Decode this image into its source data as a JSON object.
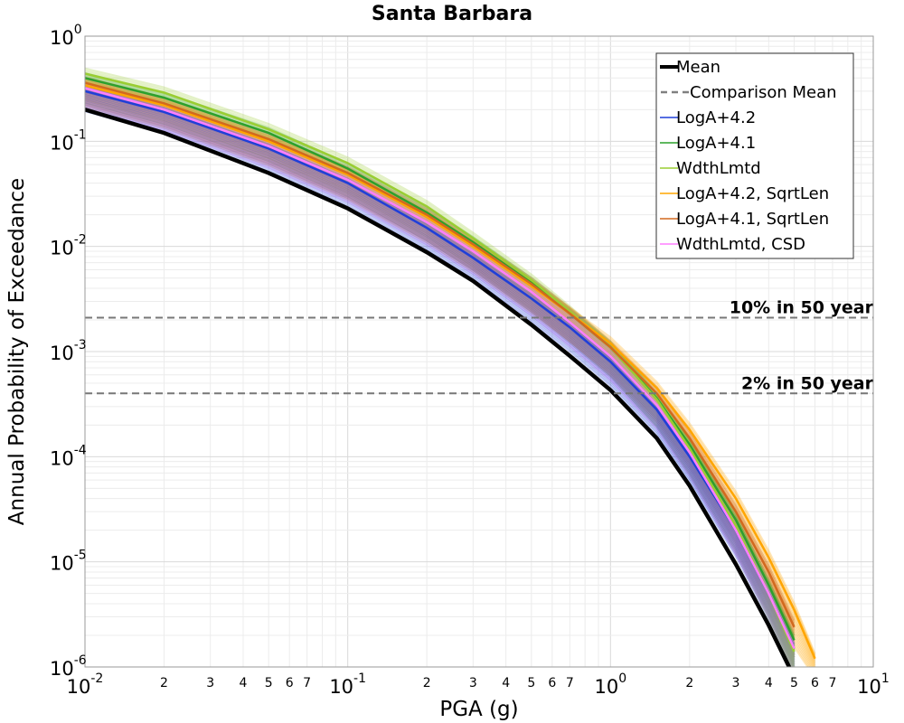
{
  "chart_data": {
    "type": "line",
    "title": "Santa Barbara",
    "xlabel": "PGA (g)",
    "ylabel": "Annual Probability of Exceedance",
    "xscale": "log",
    "yscale": "log",
    "xlim": [
      0.01,
      10
    ],
    "ylim": [
      1e-06,
      1
    ],
    "grid": true,
    "legend_position": "top-right",
    "x_ticks": [
      {
        "base": "10",
        "exp": "-2"
      },
      {
        "base": "10",
        "exp": "-1"
      },
      {
        "base": "10",
        "exp": "0"
      },
      {
        "base": "10",
        "exp": "1"
      }
    ],
    "x_minor_labels": [
      "2",
      "3",
      "4",
      "5",
      "6",
      "7"
    ],
    "y_ticks": [
      {
        "base": "10",
        "exp": "0"
      },
      {
        "base": "10",
        "exp": "-1"
      },
      {
        "base": "10",
        "exp": "-2"
      },
      {
        "base": "10",
        "exp": "-3"
      },
      {
        "base": "10",
        "exp": "-4"
      },
      {
        "base": "10",
        "exp": "-5"
      },
      {
        "base": "10",
        "exp": "-6"
      }
    ],
    "legend": [
      {
        "label": "Mean",
        "color": "#000000",
        "style": "solid-thick"
      },
      {
        "label": "Comparison Mean",
        "color": "#808080",
        "style": "dashed"
      },
      {
        "label": "LogA+4.2",
        "color": "#1f3fd8",
        "style": "solid"
      },
      {
        "label": "LogA+4.1",
        "color": "#2ca02c",
        "style": "solid"
      },
      {
        "label": "WdthLmtd",
        "color": "#9acd32",
        "style": "solid"
      },
      {
        "label": "LogA+4.2, SqrtLen",
        "color": "#ffa500",
        "style": "solid"
      },
      {
        "label": "LogA+4.1, SqrtLen",
        "color": "#d2691e",
        "style": "solid"
      },
      {
        "label": "WdthLmtd, CSD",
        "color": "#ff7fff",
        "style": "solid"
      }
    ],
    "reference_lines": [
      {
        "label": "10% in 50 year",
        "y": 0.0021
      },
      {
        "label": "2% in 50 year",
        "y": 0.0004
      }
    ],
    "series": [
      {
        "name": "Mean",
        "color": "#000000",
        "x": [
          0.01,
          0.02,
          0.05,
          0.1,
          0.2,
          0.3,
          0.5,
          0.7,
          1.0,
          1.5,
          2.0,
          3.0,
          4.0,
          5.0
        ],
        "y": [
          0.2,
          0.12,
          0.05,
          0.023,
          0.0088,
          0.0047,
          0.0018,
          0.00091,
          0.00043,
          0.00015,
          5.3e-05,
          9.5e-06,
          2.5e-06,
          8e-07
        ]
      },
      {
        "name": "Comparison Mean",
        "color": "#808080",
        "x": [
          0.01,
          0.02,
          0.05,
          0.1,
          0.2,
          0.3,
          0.5,
          0.7,
          1.0,
          1.5,
          2.0,
          3.0,
          4.0,
          5.0
        ],
        "y": [
          0.2,
          0.12,
          0.05,
          0.023,
          0.0088,
          0.0047,
          0.0018,
          0.00091,
          0.00043,
          0.00015,
          5.3e-05,
          9.5e-06,
          2.5e-06,
          8e-07
        ]
      },
      {
        "name": "LogA+4.2",
        "color": "#1f3fd8",
        "x": [
          0.01,
          0.02,
          0.05,
          0.1,
          0.2,
          0.3,
          0.5,
          0.7,
          1.0,
          1.5,
          2.0,
          3.0,
          4.0,
          5.0
        ],
        "y": [
          0.3,
          0.19,
          0.085,
          0.04,
          0.015,
          0.0078,
          0.0032,
          0.0017,
          0.0008,
          0.00028,
          0.0001,
          2e-05,
          5e-06,
          1.5e-06
        ]
      },
      {
        "name": "LogA+4.1",
        "color": "#2ca02c",
        "x": [
          0.01,
          0.02,
          0.05,
          0.1,
          0.2,
          0.3,
          0.5,
          0.7,
          1.0,
          1.5,
          2.0,
          3.0,
          4.0,
          5.0
        ],
        "y": [
          0.4,
          0.26,
          0.12,
          0.055,
          0.021,
          0.011,
          0.0045,
          0.0023,
          0.0011,
          0.00036,
          0.00013,
          2.5e-05,
          6e-06,
          1.8e-06
        ]
      },
      {
        "name": "WdthLmtd",
        "color": "#9acd32",
        "x": [
          0.01,
          0.02,
          0.05,
          0.1,
          0.2,
          0.3,
          0.5,
          0.7,
          1.0,
          1.5,
          2.0,
          3.0,
          4.0,
          5.0
        ],
        "y": [
          0.44,
          0.29,
          0.13,
          0.062,
          0.024,
          0.012,
          0.0048,
          0.0024,
          0.0011,
          0.00035,
          0.00012,
          2.2e-05,
          5e-06,
          1.4e-06
        ]
      },
      {
        "name": "LogA+4.2, SqrtLen",
        "color": "#ffa500",
        "x": [
          0.01,
          0.02,
          0.05,
          0.1,
          0.2,
          0.3,
          0.5,
          0.7,
          1.0,
          1.5,
          2.0,
          3.0,
          4.0,
          5.0,
          6.0
        ],
        "y": [
          0.34,
          0.22,
          0.1,
          0.048,
          0.019,
          0.01,
          0.0042,
          0.0023,
          0.0012,
          0.00045,
          0.00018,
          4e-05,
          1.1e-05,
          3.5e-06,
          1.2e-06
        ]
      },
      {
        "name": "LogA+4.1, SqrtLen",
        "color": "#d2691e",
        "x": [
          0.01,
          0.02,
          0.05,
          0.1,
          0.2,
          0.3,
          0.5,
          0.7,
          1.0,
          1.5,
          2.0,
          3.0,
          4.0,
          5.0
        ],
        "y": [
          0.36,
          0.23,
          0.105,
          0.05,
          0.02,
          0.0105,
          0.0044,
          0.0023,
          0.0011,
          0.0004,
          0.00015,
          3e-05,
          8e-06,
          2.4e-06
        ]
      },
      {
        "name": "WdthLmtd, CSD",
        "color": "#ff7fff",
        "x": [
          0.01,
          0.02,
          0.05,
          0.1,
          0.2,
          0.3,
          0.5,
          0.7,
          1.0,
          1.5,
          2.0,
          3.0,
          4.0,
          5.0
        ],
        "y": [
          0.32,
          0.2,
          0.09,
          0.043,
          0.017,
          0.009,
          0.0037,
          0.0019,
          0.0009,
          0.00031,
          0.00011,
          2e-05,
          5e-06,
          1.5e-06
        ]
      }
    ]
  }
}
